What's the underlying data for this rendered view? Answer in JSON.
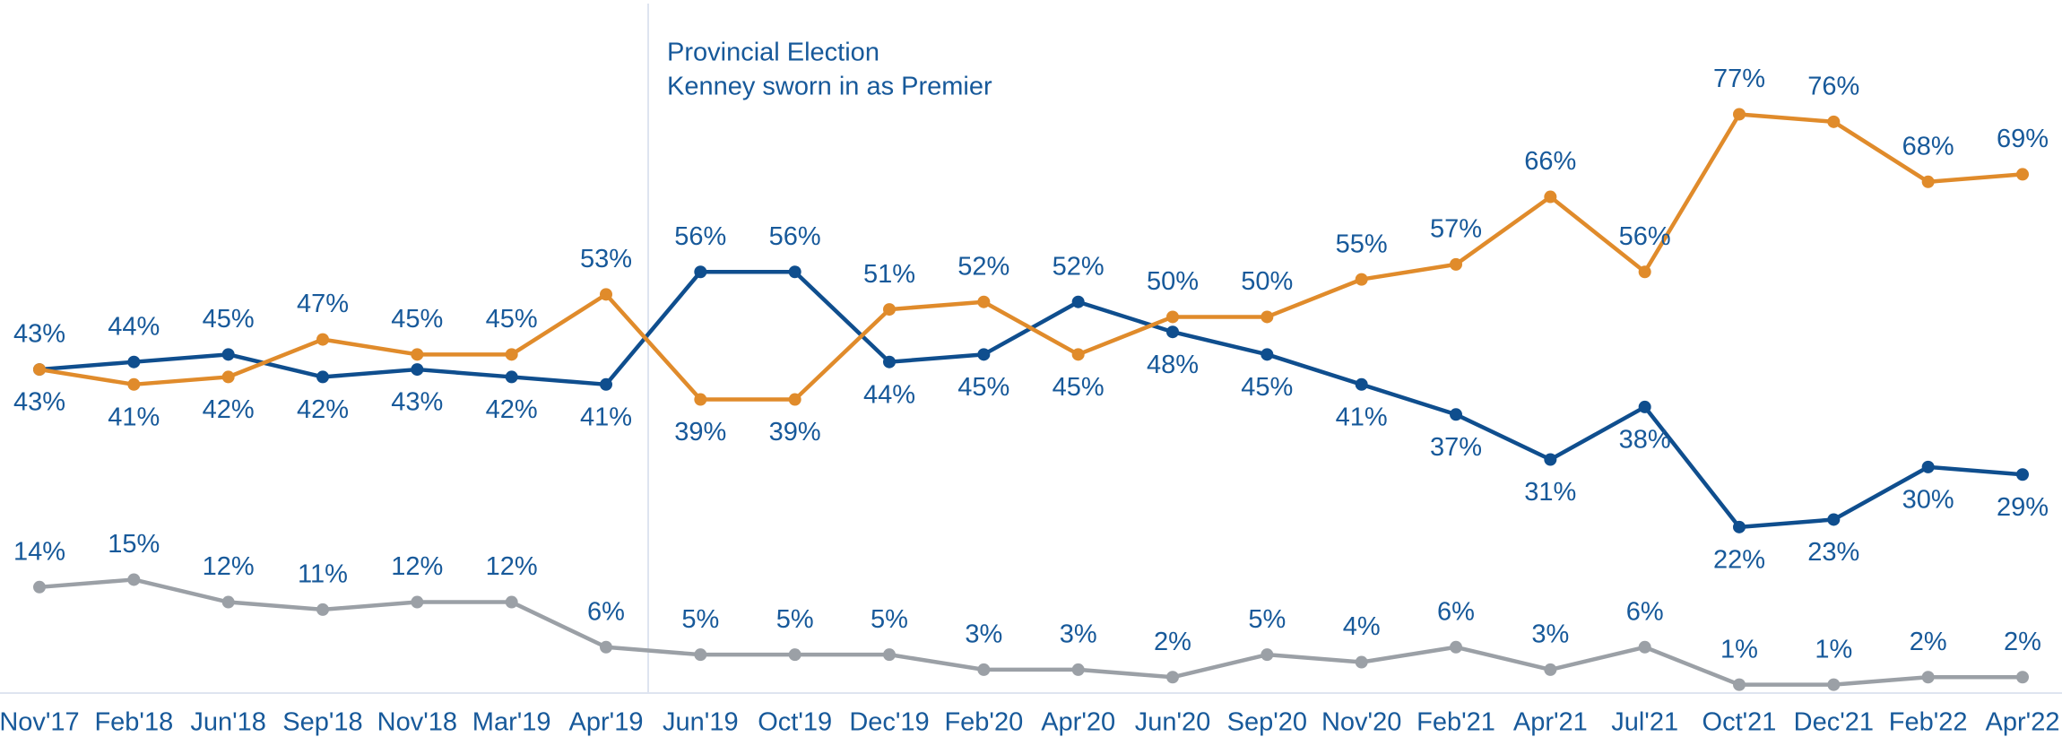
{
  "chart_data": {
    "type": "line",
    "annotation": [
      "Provincial Election",
      "Kenney sworn in as Premier"
    ],
    "categories": [
      "Nov'17",
      "Feb'18",
      "Jun'18",
      "Sep'18",
      "Nov'18",
      "Mar'19",
      "Apr'19",
      "Jun'19",
      "Oct'19",
      "Dec'19",
      "Feb'20",
      "Apr'20",
      "Jun'20",
      "Sep'20",
      "Nov'20",
      "Feb'21",
      "Apr'21",
      "Jul'21",
      "Oct'21",
      "Dec'21",
      "Feb'22",
      "Apr'22"
    ],
    "ylim": [
      0,
      85
    ],
    "series": [
      {
        "color": "#0f4e8e",
        "values": [
          43,
          44,
          45,
          42,
          43,
          42,
          41,
          56,
          56,
          44,
          45,
          52,
          48,
          45,
          41,
          37,
          31,
          38,
          22,
          23,
          30,
          29
        ],
        "value_labels": [
          "43%",
          "44%",
          "45%",
          "42%",
          "43%",
          "42%",
          "41%",
          "56%",
          "56%",
          "44%",
          "45%",
          "52%",
          "48%",
          "45%",
          "41%",
          "37%",
          "31%",
          "38%",
          "22%",
          "23%",
          "30%",
          "29%"
        ]
      },
      {
        "color": "#e08b2b",
        "values": [
          43,
          41,
          42,
          47,
          45,
          45,
          53,
          39,
          39,
          51,
          52,
          45,
          50,
          50,
          55,
          57,
          66,
          56,
          77,
          76,
          68,
          69
        ],
        "value_labels": [
          "43%",
          "41%",
          "42%",
          "47%",
          "45%",
          "45%",
          "53%",
          "39%",
          "39%",
          "51%",
          "52%",
          "45%",
          "50%",
          "50%",
          "55%",
          "57%",
          "66%",
          "56%",
          "77%",
          "76%",
          "68%",
          "69%"
        ]
      },
      {
        "color": "#9ba0a6",
        "values": [
          14,
          15,
          12,
          11,
          12,
          12,
          6,
          5,
          5,
          5,
          3,
          3,
          2,
          5,
          4,
          6,
          3,
          6,
          1,
          1,
          2,
          2
        ],
        "value_labels": [
          "14%",
          "15%",
          "12%",
          "11%",
          "12%",
          "12%",
          "6%",
          "5%",
          "5%",
          "5%",
          "3%",
          "3%",
          "2%",
          "5%",
          "4%",
          "6%",
          "3%",
          "6%",
          "1%",
          "1%",
          "2%",
          "2%"
        ]
      }
    ]
  }
}
